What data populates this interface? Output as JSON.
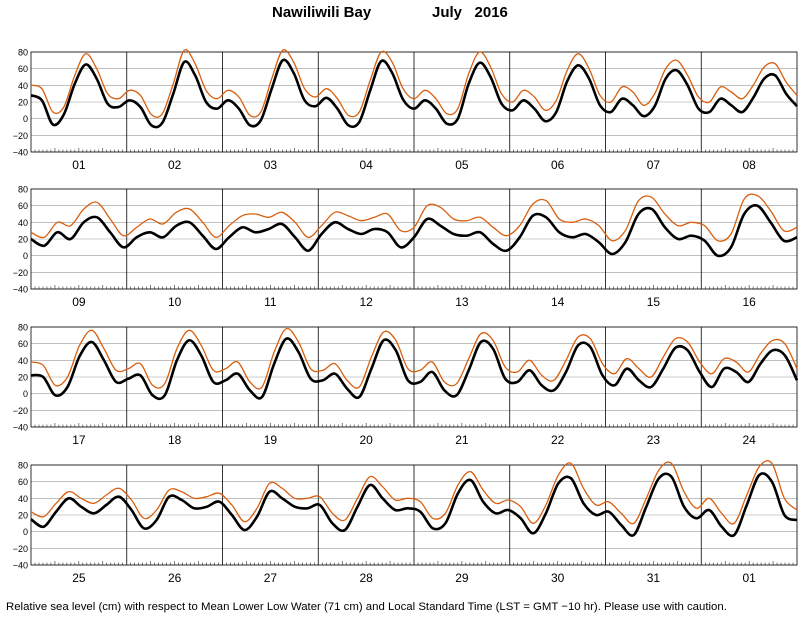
{
  "title": {
    "place": "Nawiliwili Bay",
    "month": "July",
    "year": "2016"
  },
  "footnote": "Relative sea level (cm) with respect to Mean Lower Low Water (71 cm) and Local Standard Time (LST = GMT −10 hr). Please use with caution.",
  "colors": {
    "observed": "#000000",
    "predicted": "#d95f0e",
    "grid": "#000000"
  },
  "chart_data": {
    "type": "line",
    "ylim": [
      -40,
      80
    ],
    "yticks": [
      -40,
      -20,
      0,
      20,
      40,
      60,
      80
    ],
    "units": "cm",
    "panels": [
      {
        "days": [
          "01",
          "02",
          "03",
          "04",
          "05",
          "06",
          "07",
          "08"
        ],
        "series": [
          {
            "values": [
              28,
              22,
              -7,
              5,
              42,
              65,
              48,
              18,
              14,
              22,
              14,
              -8,
              -5,
              30,
              68,
              52,
              20,
              12,
              22,
              12,
              -8,
              -2,
              36,
              70,
              55,
              22,
              15,
              25,
              12,
              -8,
              -4,
              34,
              69,
              55,
              23,
              12,
              22,
              12,
              -6,
              0,
              42,
              67,
              50,
              18,
              10,
              22,
              12,
              -3,
              8,
              45,
              64,
              48,
              16,
              8,
              24,
              16,
              3,
              15,
              48,
              58,
              40,
              12,
              8,
              24,
              16,
              8,
              25,
              48,
              52,
              30,
              15
            ]
          },
          {
            "values": [
              40,
              36,
              8,
              14,
              52,
              78,
              60,
              30,
              24,
              34,
              28,
              5,
              6,
              42,
              82,
              66,
              34,
              24,
              34,
              26,
              4,
              8,
              48,
              82,
              68,
              36,
              26,
              36,
              24,
              4,
              8,
              46,
              80,
              68,
              36,
              24,
              34,
              24,
              6,
              12,
              54,
              80,
              62,
              30,
              20,
              34,
              26,
              10,
              22,
              58,
              78,
              60,
              28,
              20,
              38,
              32,
              16,
              30,
              60,
              70,
              52,
              26,
              20,
              38,
              32,
              24,
              40,
              62,
              66,
              44,
              28
            ]
          }
        ]
      },
      {
        "days": [
          "09",
          "10",
          "11",
          "12",
          "13",
          "14",
          "15",
          "16"
        ],
        "series": [
          {
            "values": [
              20,
              12,
              28,
              20,
              40,
              46,
              28,
              10,
              22,
              28,
              22,
              36,
              40,
              24,
              8,
              22,
              34,
              28,
              32,
              38,
              22,
              6,
              26,
              40,
              32,
              26,
              32,
              28,
              10,
              22,
              44,
              36,
              26,
              24,
              28,
              14,
              6,
              22,
              48,
              46,
              28,
              22,
              26,
              16,
              2,
              16,
              50,
              56,
              34,
              20,
              24,
              18,
              0,
              10,
              50,
              60,
              40,
              18,
              22
            ]
          },
          {
            "values": [
              28,
              22,
              40,
              36,
              56,
              64,
              44,
              24,
              34,
              44,
              38,
              52,
              56,
              40,
              22,
              36,
              48,
              50,
              46,
              52,
              40,
              22,
              36,
              52,
              48,
              42,
              46,
              50,
              30,
              34,
              60,
              58,
              44,
              42,
              46,
              34,
              24,
              36,
              62,
              66,
              44,
              40,
              44,
              36,
              18,
              30,
              66,
              70,
              50,
              36,
              40,
              36,
              18,
              26,
              68,
              72,
              54,
              30,
              34
            ]
          }
        ]
      },
      {
        "days": [
          "17",
          "18",
          "19",
          "20",
          "21",
          "22",
          "23",
          "24"
        ],
        "series": [
          {
            "values": [
              22,
              20,
              -2,
              8,
              45,
              62,
              40,
              14,
              18,
              22,
              -2,
              -2,
              40,
              64,
              46,
              14,
              16,
              24,
              4,
              -4,
              36,
              66,
              50,
              18,
              16,
              24,
              6,
              -4,
              30,
              64,
              52,
              16,
              14,
              26,
              4,
              -2,
              28,
              62,
              54,
              18,
              14,
              28,
              10,
              4,
              26,
              58,
              56,
              22,
              10,
              30,
              16,
              8,
              30,
              55,
              52,
              26,
              8,
              30,
              26,
              14,
              36,
              52,
              46,
              16
            ]
          },
          {
            "values": [
              38,
              34,
              10,
              20,
              58,
              76,
              54,
              28,
              30,
              36,
              10,
              12,
              54,
              76,
              58,
              28,
              30,
              38,
              14,
              8,
              50,
              78,
              62,
              30,
              28,
              36,
              16,
              8,
              44,
              74,
              64,
              30,
              28,
              38,
              14,
              12,
              42,
              72,
              64,
              32,
              26,
              40,
              22,
              16,
              40,
              68,
              66,
              36,
              24,
              42,
              30,
              20,
              44,
              66,
              62,
              38,
              24,
              42,
              38,
              26,
              48,
              64,
              60,
              30
            ]
          }
        ]
      },
      {
        "days": [
          "25",
          "26",
          "27",
          "28",
          "29",
          "30",
          "31",
          "01"
        ],
        "series": [
          {
            "values": [
              15,
              6,
              24,
              40,
              30,
              22,
              32,
              42,
              26,
              4,
              14,
              42,
              38,
              28,
              30,
              36,
              20,
              2,
              18,
              48,
              40,
              30,
              28,
              32,
              10,
              2,
              30,
              56,
              40,
              26,
              28,
              24,
              4,
              10,
              46,
              62,
              36,
              22,
              26,
              16,
              -2,
              22,
              58,
              64,
              34,
              20,
              24,
              8,
              -4,
              30,
              64,
              66,
              30,
              16,
              26,
              6,
              -4,
              32,
              68,
              60,
              20,
              14
            ]
          },
          {
            "values": [
              24,
              18,
              34,
              48,
              40,
              34,
              44,
              52,
              38,
              16,
              26,
              50,
              48,
              40,
              42,
              46,
              32,
              12,
              28,
              58,
              52,
              40,
              40,
              42,
              22,
              14,
              40,
              66,
              54,
              38,
              40,
              36,
              16,
              22,
              56,
              72,
              50,
              34,
              38,
              30,
              10,
              32,
              68,
              82,
              52,
              32,
              36,
              22,
              10,
              40,
              74,
              82,
              48,
              28,
              40,
              22,
              10,
              44,
              78,
              82,
              40,
              26
            ]
          }
        ]
      }
    ]
  }
}
